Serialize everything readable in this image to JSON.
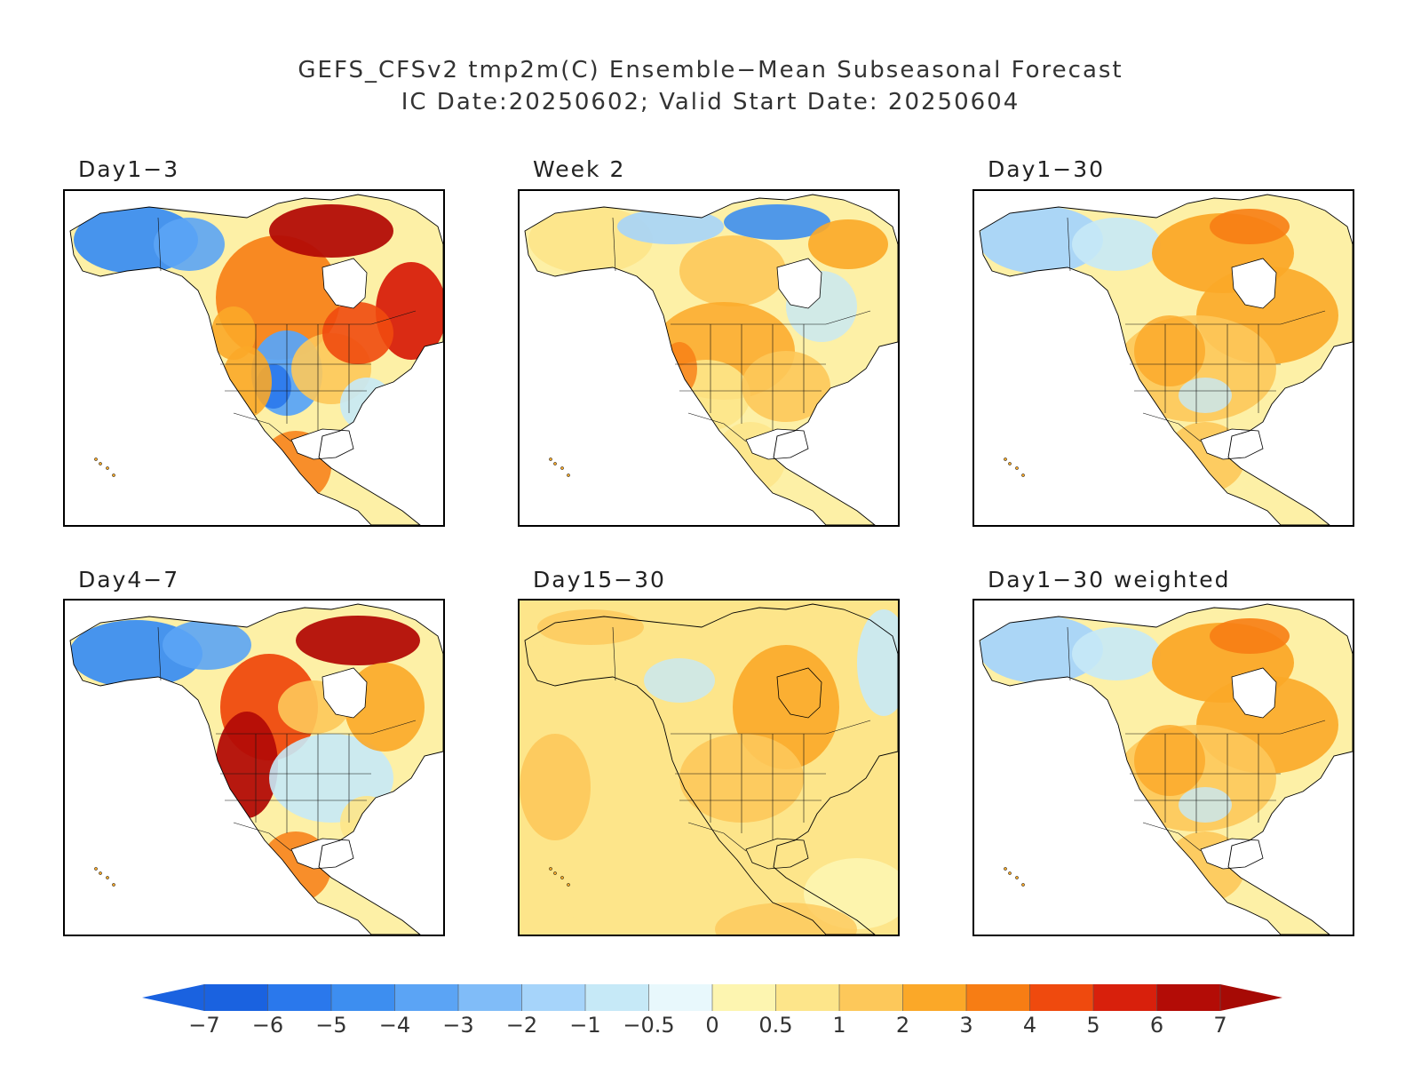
{
  "title": {
    "line1": "GEFS_CFSv2 tmp2m(C) Ensemble−Mean Subseasonal Forecast",
    "line2": "IC Date:20250602; Valid Start Date: 20250604"
  },
  "panels": [
    {
      "id": "p1",
      "label": "Day1−3"
    },
    {
      "id": "p2",
      "label": "Week 2"
    },
    {
      "id": "p3",
      "label": "Day1−30"
    },
    {
      "id": "p4",
      "label": "Day4−7"
    },
    {
      "id": "p5",
      "label": "Day15−30"
    },
    {
      "id": "p6",
      "label": "Day1−30 weighted"
    }
  ],
  "colorbar": {
    "labels": [
      "−7",
      "−6",
      "−5",
      "−4",
      "−3",
      "−2",
      "−1",
      "−0.5",
      "0",
      "0.5",
      "1",
      "2",
      "3",
      "4",
      "5",
      "6",
      "7"
    ],
    "colors": [
      "#1a62e0",
      "#2a78ec",
      "#3d8ef0",
      "#5ba4f5",
      "#80bcf8",
      "#a6d4fa",
      "#c6e9f7",
      "#e8f8fc",
      "#fdf5b0",
      "#fde58a",
      "#fdc85a",
      "#fba828",
      "#f77d14",
      "#ef4a0e",
      "#d8200c",
      "#b30c06"
    ],
    "left_tip_color": "#1a62e0",
    "right_tip_color": "#a60a05"
  }
}
